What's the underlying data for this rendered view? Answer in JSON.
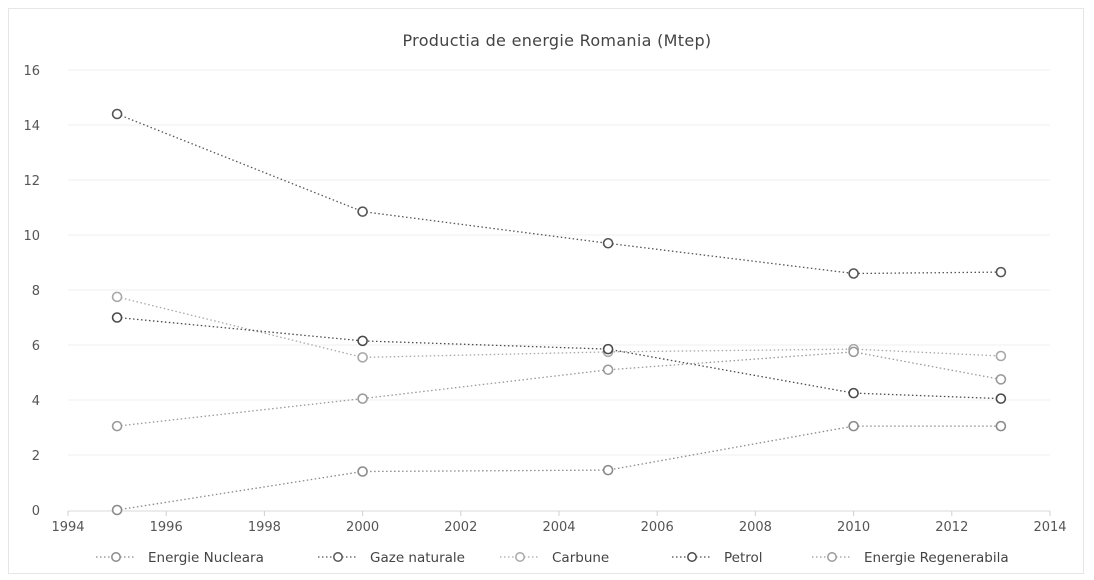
{
  "chart_data": {
    "type": "scatter",
    "title": "Productia de energie Romania (Mtep)",
    "xlabel": "",
    "ylabel": "",
    "xlim": [
      1994,
      2014
    ],
    "ylim": [
      0,
      16
    ],
    "x_ticks": [
      "1994",
      "1996",
      "1998",
      "2000",
      "2002",
      "2004",
      "2006",
      "2008",
      "2010",
      "2012",
      "2014"
    ],
    "y_ticks": [
      "0",
      "2",
      "4",
      "6",
      "8",
      "10",
      "12",
      "14",
      "16"
    ],
    "grid": "horizontal-faint",
    "legend_position": "bottom",
    "x": [
      1995,
      2000,
      2005,
      2010,
      2013
    ],
    "series": [
      {
        "name": "Energie Nucleara",
        "color": "#8a8a8a",
        "values": [
          0.0,
          1.4,
          1.45,
          3.05,
          3.05
        ]
      },
      {
        "name": "Gaze naturale",
        "color": "#555555",
        "values": [
          14.4,
          10.85,
          9.7,
          8.6,
          8.65
        ]
      },
      {
        "name": "Carbune",
        "color": "#a8a8a8",
        "values": [
          7.75,
          5.55,
          5.75,
          5.85,
          5.6
        ]
      },
      {
        "name": "Petrol",
        "color": "#4a4a4a",
        "values": [
          7.0,
          6.15,
          5.85,
          4.25,
          4.05
        ]
      },
      {
        "name": "Energie Regenerabila",
        "color": "#9a9a9a",
        "values": [
          3.05,
          4.05,
          5.1,
          5.75,
          4.75
        ]
      }
    ]
  }
}
